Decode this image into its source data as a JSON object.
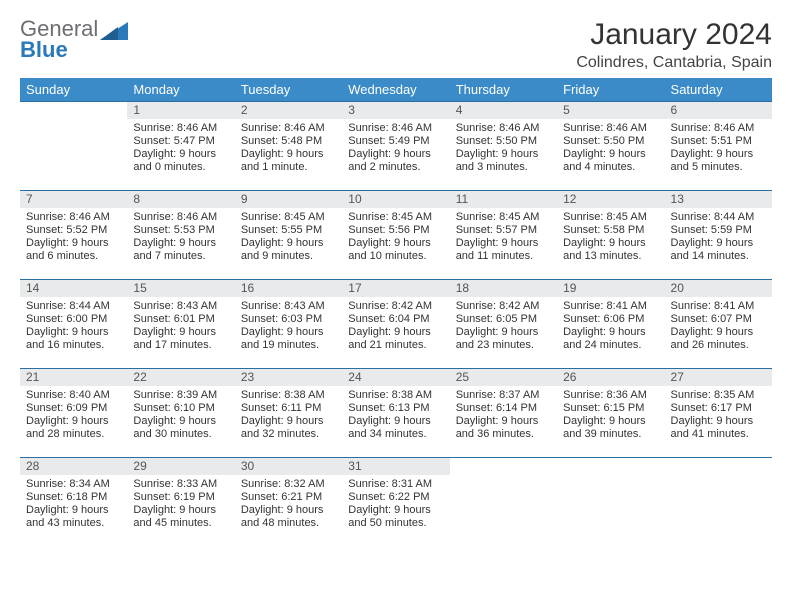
{
  "logo": {
    "text1": "General",
    "text2": "Blue"
  },
  "title": "January 2024",
  "location": "Colindres, Cantabria, Spain",
  "colors": {
    "header_bg": "#3b8bc8",
    "header_text": "#ffffff",
    "daynum_bg": "#e9eaec",
    "rule": "#2a6fa3",
    "logo_gray": "#6d6e71",
    "logo_blue": "#2a7ab9"
  },
  "day_headers": [
    "Sunday",
    "Monday",
    "Tuesday",
    "Wednesday",
    "Thursday",
    "Friday",
    "Saturday"
  ],
  "weeks": [
    [
      {
        "n": "",
        "text": ""
      },
      {
        "n": "1",
        "text": "Sunrise: 8:46 AM\nSunset: 5:47 PM\nDaylight: 9 hours and 0 minutes."
      },
      {
        "n": "2",
        "text": "Sunrise: 8:46 AM\nSunset: 5:48 PM\nDaylight: 9 hours and 1 minute."
      },
      {
        "n": "3",
        "text": "Sunrise: 8:46 AM\nSunset: 5:49 PM\nDaylight: 9 hours and 2 minutes."
      },
      {
        "n": "4",
        "text": "Sunrise: 8:46 AM\nSunset: 5:50 PM\nDaylight: 9 hours and 3 minutes."
      },
      {
        "n": "5",
        "text": "Sunrise: 8:46 AM\nSunset: 5:50 PM\nDaylight: 9 hours and 4 minutes."
      },
      {
        "n": "6",
        "text": "Sunrise: 8:46 AM\nSunset: 5:51 PM\nDaylight: 9 hours and 5 minutes."
      }
    ],
    [
      {
        "n": "7",
        "text": "Sunrise: 8:46 AM\nSunset: 5:52 PM\nDaylight: 9 hours and 6 minutes."
      },
      {
        "n": "8",
        "text": "Sunrise: 8:46 AM\nSunset: 5:53 PM\nDaylight: 9 hours and 7 minutes."
      },
      {
        "n": "9",
        "text": "Sunrise: 8:45 AM\nSunset: 5:55 PM\nDaylight: 9 hours and 9 minutes."
      },
      {
        "n": "10",
        "text": "Sunrise: 8:45 AM\nSunset: 5:56 PM\nDaylight: 9 hours and 10 minutes."
      },
      {
        "n": "11",
        "text": "Sunrise: 8:45 AM\nSunset: 5:57 PM\nDaylight: 9 hours and 11 minutes."
      },
      {
        "n": "12",
        "text": "Sunrise: 8:45 AM\nSunset: 5:58 PM\nDaylight: 9 hours and 13 minutes."
      },
      {
        "n": "13",
        "text": "Sunrise: 8:44 AM\nSunset: 5:59 PM\nDaylight: 9 hours and 14 minutes."
      }
    ],
    [
      {
        "n": "14",
        "text": "Sunrise: 8:44 AM\nSunset: 6:00 PM\nDaylight: 9 hours and 16 minutes."
      },
      {
        "n": "15",
        "text": "Sunrise: 8:43 AM\nSunset: 6:01 PM\nDaylight: 9 hours and 17 minutes."
      },
      {
        "n": "16",
        "text": "Sunrise: 8:43 AM\nSunset: 6:03 PM\nDaylight: 9 hours and 19 minutes."
      },
      {
        "n": "17",
        "text": "Sunrise: 8:42 AM\nSunset: 6:04 PM\nDaylight: 9 hours and 21 minutes."
      },
      {
        "n": "18",
        "text": "Sunrise: 8:42 AM\nSunset: 6:05 PM\nDaylight: 9 hours and 23 minutes."
      },
      {
        "n": "19",
        "text": "Sunrise: 8:41 AM\nSunset: 6:06 PM\nDaylight: 9 hours and 24 minutes."
      },
      {
        "n": "20",
        "text": "Sunrise: 8:41 AM\nSunset: 6:07 PM\nDaylight: 9 hours and 26 minutes."
      }
    ],
    [
      {
        "n": "21",
        "text": "Sunrise: 8:40 AM\nSunset: 6:09 PM\nDaylight: 9 hours and 28 minutes."
      },
      {
        "n": "22",
        "text": "Sunrise: 8:39 AM\nSunset: 6:10 PM\nDaylight: 9 hours and 30 minutes."
      },
      {
        "n": "23",
        "text": "Sunrise: 8:38 AM\nSunset: 6:11 PM\nDaylight: 9 hours and 32 minutes."
      },
      {
        "n": "24",
        "text": "Sunrise: 8:38 AM\nSunset: 6:13 PM\nDaylight: 9 hours and 34 minutes."
      },
      {
        "n": "25",
        "text": "Sunrise: 8:37 AM\nSunset: 6:14 PM\nDaylight: 9 hours and 36 minutes."
      },
      {
        "n": "26",
        "text": "Sunrise: 8:36 AM\nSunset: 6:15 PM\nDaylight: 9 hours and 39 minutes."
      },
      {
        "n": "27",
        "text": "Sunrise: 8:35 AM\nSunset: 6:17 PM\nDaylight: 9 hours and 41 minutes."
      }
    ],
    [
      {
        "n": "28",
        "text": "Sunrise: 8:34 AM\nSunset: 6:18 PM\nDaylight: 9 hours and 43 minutes."
      },
      {
        "n": "29",
        "text": "Sunrise: 8:33 AM\nSunset: 6:19 PM\nDaylight: 9 hours and 45 minutes."
      },
      {
        "n": "30",
        "text": "Sunrise: 8:32 AM\nSunset: 6:21 PM\nDaylight: 9 hours and 48 minutes."
      },
      {
        "n": "31",
        "text": "Sunrise: 8:31 AM\nSunset: 6:22 PM\nDaylight: 9 hours and 50 minutes."
      },
      {
        "n": "",
        "text": ""
      },
      {
        "n": "",
        "text": ""
      },
      {
        "n": "",
        "text": ""
      }
    ]
  ]
}
